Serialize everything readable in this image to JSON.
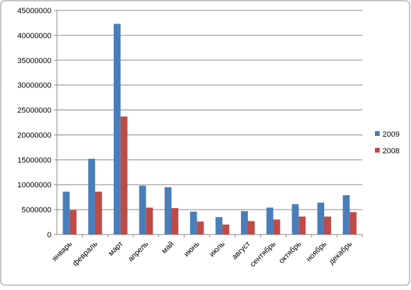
{
  "chart_data": {
    "type": "bar",
    "categories": [
      "январь",
      "февраль",
      "март",
      "апрель",
      "май",
      "июнь",
      "июль",
      "август",
      "сентябрь",
      "октябрь",
      "ноябрь",
      "декабрь"
    ],
    "series": [
      {
        "name": "2009",
        "color": "#4a7ebb",
        "values": [
          8600000,
          15200000,
          42300000,
          9800000,
          9500000,
          4600000,
          3500000,
          4700000,
          5400000,
          6100000,
          6400000,
          7900000
        ]
      },
      {
        "name": "2008",
        "color": "#be4b48",
        "values": [
          4900000,
          8600000,
          23700000,
          5400000,
          5300000,
          2600000,
          2000000,
          2700000,
          3000000,
          3600000,
          3600000,
          4500000
        ]
      }
    ],
    "ylim": [
      0,
      45000000
    ],
    "yticks": [
      0,
      5000000,
      10000000,
      15000000,
      20000000,
      25000000,
      30000000,
      35000000,
      40000000,
      45000000
    ],
    "grid": true,
    "legend": "right"
  }
}
